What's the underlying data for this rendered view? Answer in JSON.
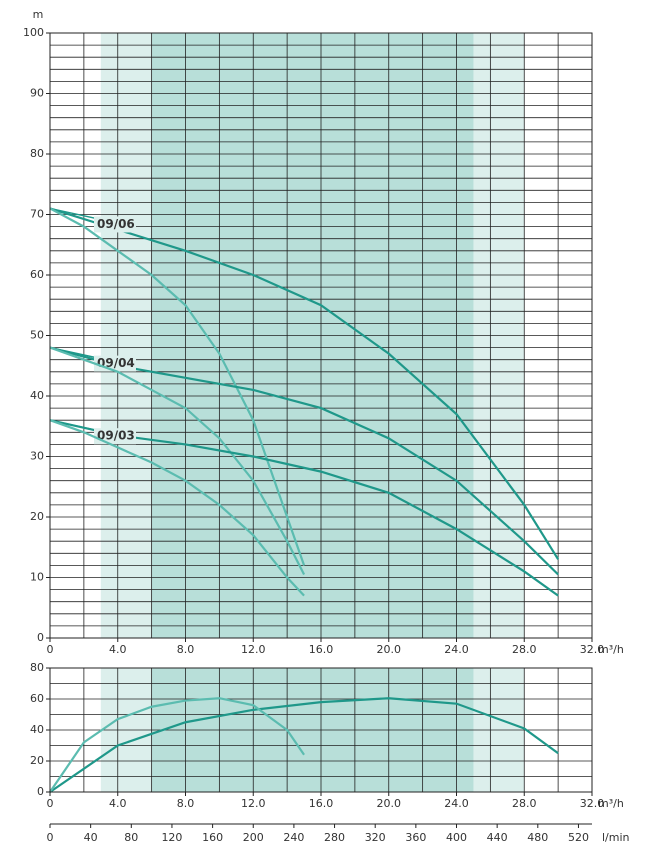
{
  "chart_data": [
    {
      "type": "line",
      "ylabel": "m",
      "xlabel": "m³/h",
      "xlim": [
        0,
        32
      ],
      "ylim": [
        0,
        100
      ],
      "xticks": [
        0,
        {
          "value": 4,
          "label": "4.0"
        },
        {
          "value": 8,
          "label": "8.0"
        },
        {
          "value": 12,
          "label": "12.0"
        },
        {
          "value": 16,
          "label": "16.0"
        },
        {
          "value": 20,
          "label": "20.0"
        },
        {
          "value": 24,
          "label": "24.0"
        },
        {
          "value": 28,
          "label": "28.0"
        },
        {
          "value": 32,
          "label": "32.0"
        }
      ],
      "yticks": [
        0,
        10,
        20,
        30,
        40,
        50,
        60,
        70,
        80,
        90,
        100
      ],
      "x_grid_step": 2,
      "y_grid_step": 2,
      "bands": [
        {
          "from": 3,
          "to": 28,
          "color": "#dcefec"
        },
        {
          "from": 6,
          "to": 25,
          "color": "#b8dfd9"
        }
      ],
      "series": [
        {
          "name": "09/06",
          "color": "#1f988a",
          "x": [
            0,
            4,
            8,
            12,
            16,
            20,
            24,
            28,
            30
          ],
          "values": [
            71,
            67.5,
            64,
            60,
            55,
            47,
            37,
            22,
            13
          ]
        },
        {
          "color": "#5bbcb0",
          "x": [
            0,
            2,
            4,
            6,
            8,
            10,
            12,
            13,
            14,
            15
          ],
          "values": [
            71,
            68,
            64,
            60,
            55,
            47,
            36,
            28,
            20,
            12
          ]
        },
        {
          "name": "09/04",
          "color": "#1f988a",
          "x": [
            0,
            4,
            8,
            12,
            16,
            20,
            24,
            28,
            30
          ],
          "values": [
            48,
            45,
            43,
            41,
            38,
            33,
            26,
            16,
            10.5
          ]
        },
        {
          "color": "#5bbcb0",
          "x": [
            0,
            2,
            4,
            6,
            8,
            10,
            12,
            14,
            15
          ],
          "values": [
            48,
            46,
            44,
            41,
            38,
            33,
            26,
            16,
            10.5
          ]
        },
        {
          "name": "09/03",
          "color": "#1f988a",
          "x": [
            0,
            4,
            8,
            12,
            16,
            20,
            24,
            28,
            30
          ],
          "values": [
            36,
            33.5,
            32,
            30,
            27.5,
            24,
            18,
            11,
            7
          ]
        },
        {
          "color": "#5bbcb0",
          "x": [
            0,
            2,
            4,
            6,
            8,
            10,
            12,
            14,
            15
          ],
          "values": [
            36,
            34,
            31.5,
            29,
            26,
            22,
            17,
            10,
            7
          ]
        }
      ]
    },
    {
      "type": "line",
      "xlabel": "m³/h",
      "x2label": "l/min",
      "xlim": [
        0,
        32
      ],
      "ylim": [
        0,
        80
      ],
      "x2lim": [
        0,
        533.33
      ],
      "xticks": [
        0,
        {
          "value": 4,
          "label": "4.0"
        },
        {
          "value": 8,
          "label": "8.0"
        },
        {
          "value": 12,
          "label": "12.0"
        },
        {
          "value": 16,
          "label": "16.0"
        },
        {
          "value": 20,
          "label": "20.0"
        },
        {
          "value": 24,
          "label": "24.0"
        },
        {
          "value": 28,
          "label": "28.0"
        },
        {
          "value": 32,
          "label": "32.0"
        }
      ],
      "yticks": [
        0,
        20,
        40,
        60,
        80
      ],
      "x2ticks": [
        0,
        40,
        80,
        120,
        160,
        200,
        240,
        280,
        320,
        360,
        400,
        440,
        480,
        520
      ],
      "x_grid_step": 2,
      "y_grid_step": 10,
      "bands": [
        {
          "from": 3,
          "to": 28,
          "color": "#dcefec"
        },
        {
          "from": 6,
          "to": 25,
          "color": "#b8dfd9"
        }
      ],
      "series": [
        {
          "color": "#1f988a",
          "x": [
            0,
            4,
            8,
            12,
            16,
            20,
            24,
            28,
            30
          ],
          "values": [
            0,
            30,
            45,
            53,
            58,
            60.5,
            57,
            41,
            25
          ]
        },
        {
          "color": "#5bbcb0",
          "x": [
            0,
            2,
            4,
            6,
            8,
            10,
            12,
            14,
            15
          ],
          "values": [
            0,
            32,
            47,
            55,
            59,
            60.5,
            56,
            40,
            24
          ]
        }
      ]
    }
  ]
}
